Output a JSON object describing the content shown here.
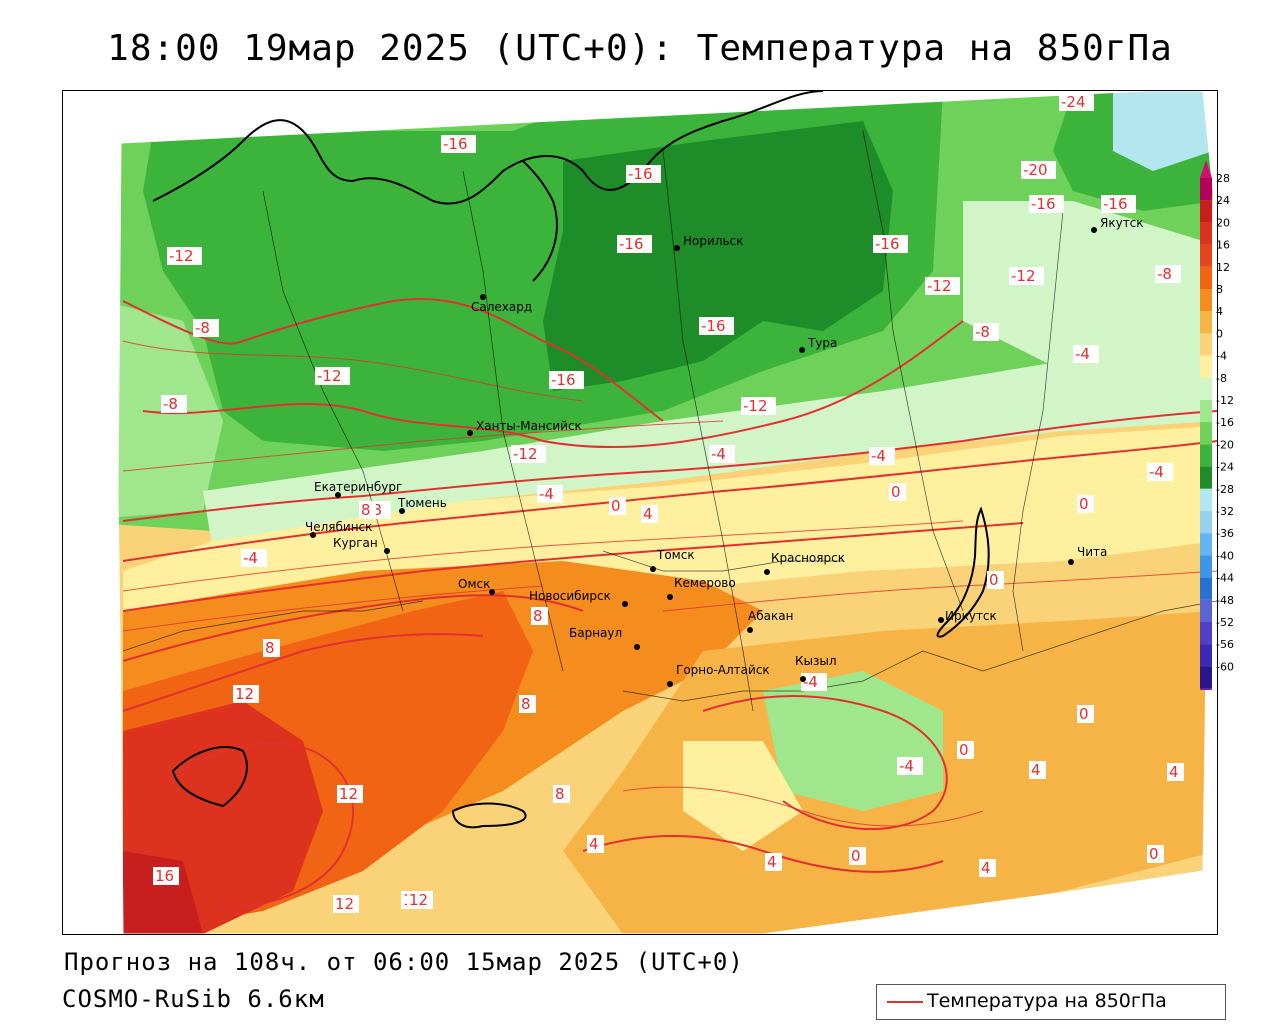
{
  "title": "18:00 19мар 2025 (UTC+0): Температура на 850гПа",
  "footer": {
    "forecast": "Прогноз на 108ч. от 06:00 15мар 2025 (UTC+0)",
    "model": "COSMO-RuSib 6.6км"
  },
  "legend": {
    "label": "Температура на 850гПа",
    "line_color": "#e23030"
  },
  "colorbar": {
    "ticks": [
      "28",
      "24",
      "20",
      "16",
      "12",
      "8",
      "4",
      "0",
      "-4",
      "-8",
      "-12",
      "-16",
      "-20",
      "-24",
      "-28",
      "-32",
      "-36",
      "-40",
      "-44",
      "-48",
      "-52",
      "-56",
      "-60"
    ],
    "colors": [
      "#b4005a",
      "#c81e1e",
      "#dc321e",
      "#e6461e",
      "#f06414",
      "#f58c1e",
      "#f7b446",
      "#fad278",
      "#fff0a0",
      "#d2f5c8",
      "#a0e68c",
      "#6ed25a",
      "#3cb43c",
      "#1e8c28",
      "#b4e6f0",
      "#96d2f0",
      "#64b4f0",
      "#3c96e6",
      "#2870d2",
      "#5a64d2",
      "#5040c8",
      "#3c28b4",
      "#2a148c"
    ],
    "top_color": "#d01070",
    "bottom_color": "#7814a0"
  },
  "cities": [
    {
      "name": "Норильск"
    },
    {
      "name": "Якутск"
    },
    {
      "name": "Салехард"
    },
    {
      "name": "Тура"
    },
    {
      "name": "Ханты-Мансийск"
    },
    {
      "name": "Екатеринбург"
    },
    {
      "name": "Тюмень"
    },
    {
      "name": "Челябинск"
    },
    {
      "name": "Курган"
    },
    {
      "name": "Омск"
    },
    {
      "name": "Новосибирск"
    },
    {
      "name": "Томск"
    },
    {
      "name": "Кемерово"
    },
    {
      "name": "Красноярск"
    },
    {
      "name": "Абакан"
    },
    {
      "name": "Барнаул"
    },
    {
      "name": "Горно-Алтайск"
    },
    {
      "name": "Кызыл"
    },
    {
      "name": "Иркутск"
    },
    {
      "name": "Чита"
    }
  ],
  "contour_labels": [
    "-24",
    "-20",
    "-16",
    "-16",
    "-16",
    "-16",
    "-16",
    "-16",
    "-16",
    "-16",
    "-12",
    "-12",
    "-12",
    "-12",
    "-12",
    "-12",
    "-8",
    "-8",
    "-8",
    "-8",
    "-8",
    "-4",
    "-4",
    "-4",
    "-4",
    "-4",
    "-4",
    "-4",
    "-4",
    "0",
    "0",
    "0",
    "0",
    "0",
    "0",
    "0",
    "0",
    "4",
    "4",
    "4",
    "4",
    "4",
    "4",
    "8",
    "8",
    "8",
    "8",
    "8",
    "12",
    "12",
    "12",
    "12",
    "12",
    "16"
  ],
  "colors": {
    "coastline": "#000000",
    "borders": "#000000",
    "contour": "#e23030",
    "outside": "#ffffff"
  }
}
